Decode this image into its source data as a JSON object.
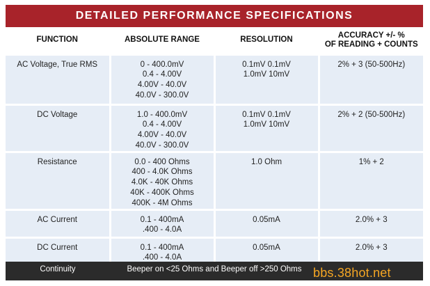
{
  "title": "DETAILED PERFORMANCE SPECIFICATIONS",
  "columns": [
    {
      "lines": [
        "FUNCTION"
      ]
    },
    {
      "lines": [
        "ABSOLUTE RANGE"
      ]
    },
    {
      "lines": [
        "RESOLUTION"
      ]
    },
    {
      "lines": [
        "ACCURACY +/- %",
        "OF READING + COUNTS"
      ]
    }
  ],
  "rows": [
    {
      "function": "AC Voltage, True RMS",
      "range": [
        "0 - 400.0mV",
        "0.4 - 4.00V",
        "4.00V - 40.0V",
        "40.0V - 300.0V"
      ],
      "resolution": [
        "0.1mV 0.1mV",
        "1.0mV 10mV"
      ],
      "accuracy": "2% + 3 (50-500Hz)"
    },
    {
      "function": "DC Voltage",
      "range": [
        "1.0 - 400.0mV",
        "0.4 - 4.00V",
        "4.00V - 40.0V",
        "40.0V - 300.0V"
      ],
      "resolution": [
        "0.1mV 0.1mV",
        "1.0mV 10mV"
      ],
      "accuracy": "2% + 2 (50-500Hz)"
    },
    {
      "function": "Resistance",
      "range": [
        "0.0 - 400 Ohms",
        "400 - 4.0K Ohms",
        "4.0K - 40K Ohms",
        "40K - 400K Ohms",
        "400K - 4M Ohms"
      ],
      "resolution": [
        "1.0 Ohm"
      ],
      "accuracy": "1% + 2"
    },
    {
      "function": "AC Current",
      "range": [
        "0.1 - 400mA",
        ".400 - 4.0A"
      ],
      "resolution": [
        "0.05mA"
      ],
      "accuracy": "2.0% + 3"
    },
    {
      "function": "DC Current",
      "range": [
        "0.1 - 400mA",
        ".400 - 4.0A"
      ],
      "resolution": [
        "0.05mA"
      ],
      "accuracy": "2.0% + 3"
    }
  ],
  "footer": {
    "function": "Continuity",
    "value": "Beeper on <25 Ohms and Beeper off >250 Ohms"
  },
  "watermark": "bbs.38hot.net",
  "colors": {
    "title_bg": "#a8232a",
    "row_bg": "#e6edf6",
    "footer_bg": "#2b2b2b",
    "watermark": "#f5a623"
  }
}
